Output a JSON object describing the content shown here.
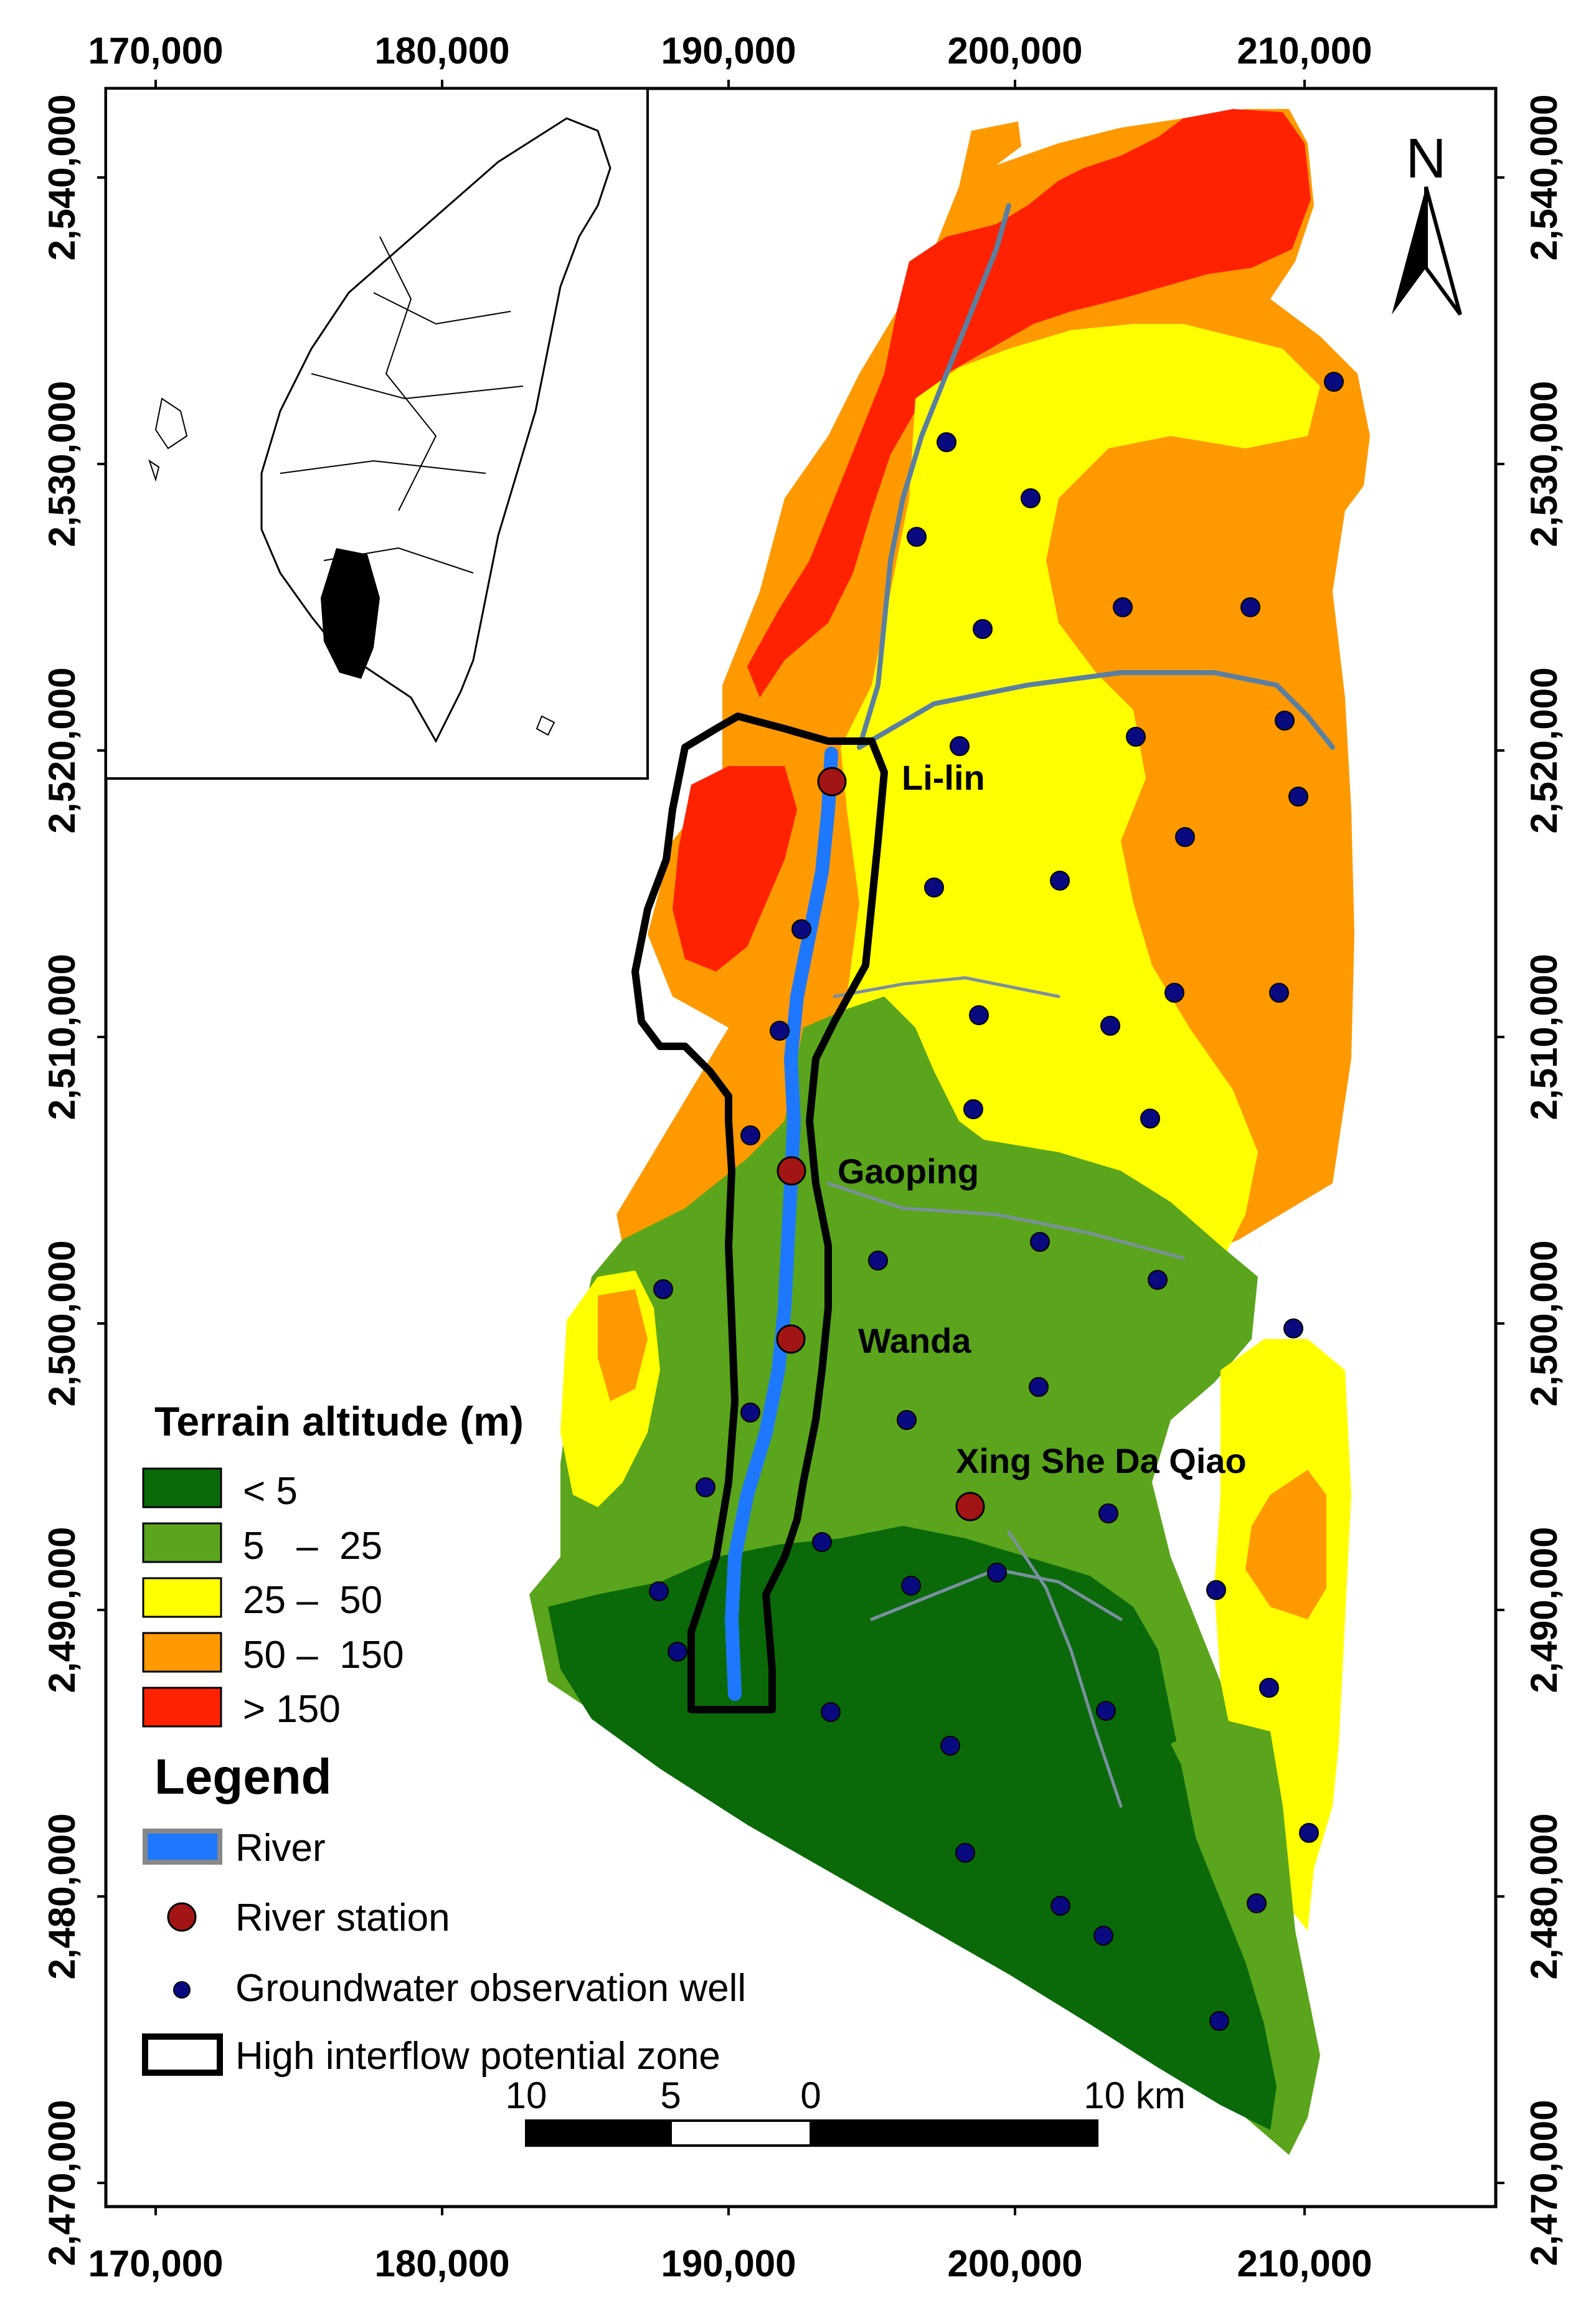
{
  "axes": {
    "x_ticks": [
      "170,000",
      "180,000",
      "190,000",
      "200,000",
      "210,000"
    ],
    "y_ticks": [
      "2,540,000",
      "2,530,000",
      "2,520,000",
      "2,510,000",
      "2,500,000",
      "2,490,000",
      "2,480,000",
      "2,470,000"
    ]
  },
  "north_arrow": {
    "label": "N"
  },
  "stations": {
    "lilin": "Li-lin",
    "gaoping": "Gaoping",
    "wanda": "Wanda",
    "xingshe": "Xing She Da Qiao"
  },
  "terrain_legend": {
    "title": "Terrain altitude (m)",
    "classes": [
      {
        "label": "< 5",
        "color": "#0a6a0a"
      },
      {
        "label": "5   –  25",
        "color": "#5aa51b"
      },
      {
        "label": "25 –  50",
        "color": "#ffff00"
      },
      {
        "label": "50 –  150",
        "color": "#ff9900"
      },
      {
        "label": "> 150",
        "color": "#ff2200"
      }
    ]
  },
  "legend": {
    "title": "Legend",
    "items": [
      {
        "label": "River",
        "symbol": "river-swatch",
        "color": "#1e78ff"
      },
      {
        "label": "River station",
        "symbol": "red-circle",
        "color": "#a31515"
      },
      {
        "label": "Groundwater observation well",
        "symbol": "blue-dot",
        "color": "#0a0a80"
      },
      {
        "label": "High interflow potential zone",
        "symbol": "black-outline",
        "color": "#000000"
      }
    ]
  },
  "scalebar": {
    "labels": [
      "10",
      "5",
      "0",
      "10 km"
    ]
  },
  "inset": {
    "highlight_color": "#000000"
  },
  "colors": {
    "dark_green": "#0a6a0a",
    "green": "#5aa51b",
    "yellow": "#ffff00",
    "orange": "#ff9900",
    "red": "#ff2200",
    "river": "#1e78ff",
    "station": "#a31515",
    "well": "#0a0a80"
  }
}
